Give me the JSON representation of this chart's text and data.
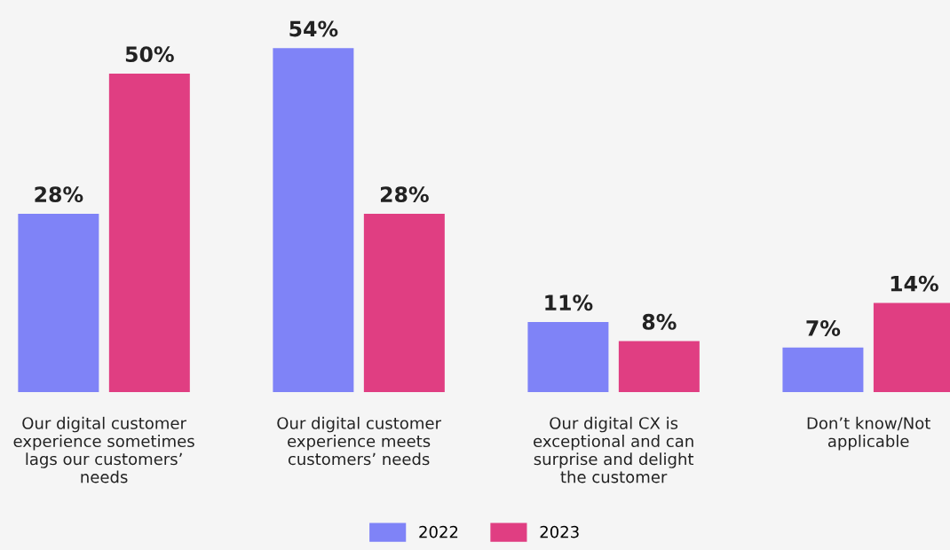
{
  "chart_data": {
    "type": "bar",
    "categories": [
      "Our digital customer\nexperience sometimes\nlags our customers’\nneeds",
      "Our digital customer\nexperience meets\ncustomers’ needs",
      "Our digital CX is\nexceptional and can\nsurprise and delight\nthe customer",
      "Don’t know/Not\napplicable"
    ],
    "series": [
      {
        "name": "2022",
        "color": "#7f83f7",
        "values": [
          28,
          54,
          11,
          7
        ],
        "value_labels": [
          "28%",
          "54%",
          "11%",
          "7%"
        ]
      },
      {
        "name": "2023",
        "color": "#e03e82",
        "values": [
          50,
          28,
          8,
          14
        ],
        "value_labels": [
          "50%",
          "28%",
          "8%",
          "14%"
        ]
      }
    ],
    "legend": "bottom",
    "grid": false
  }
}
